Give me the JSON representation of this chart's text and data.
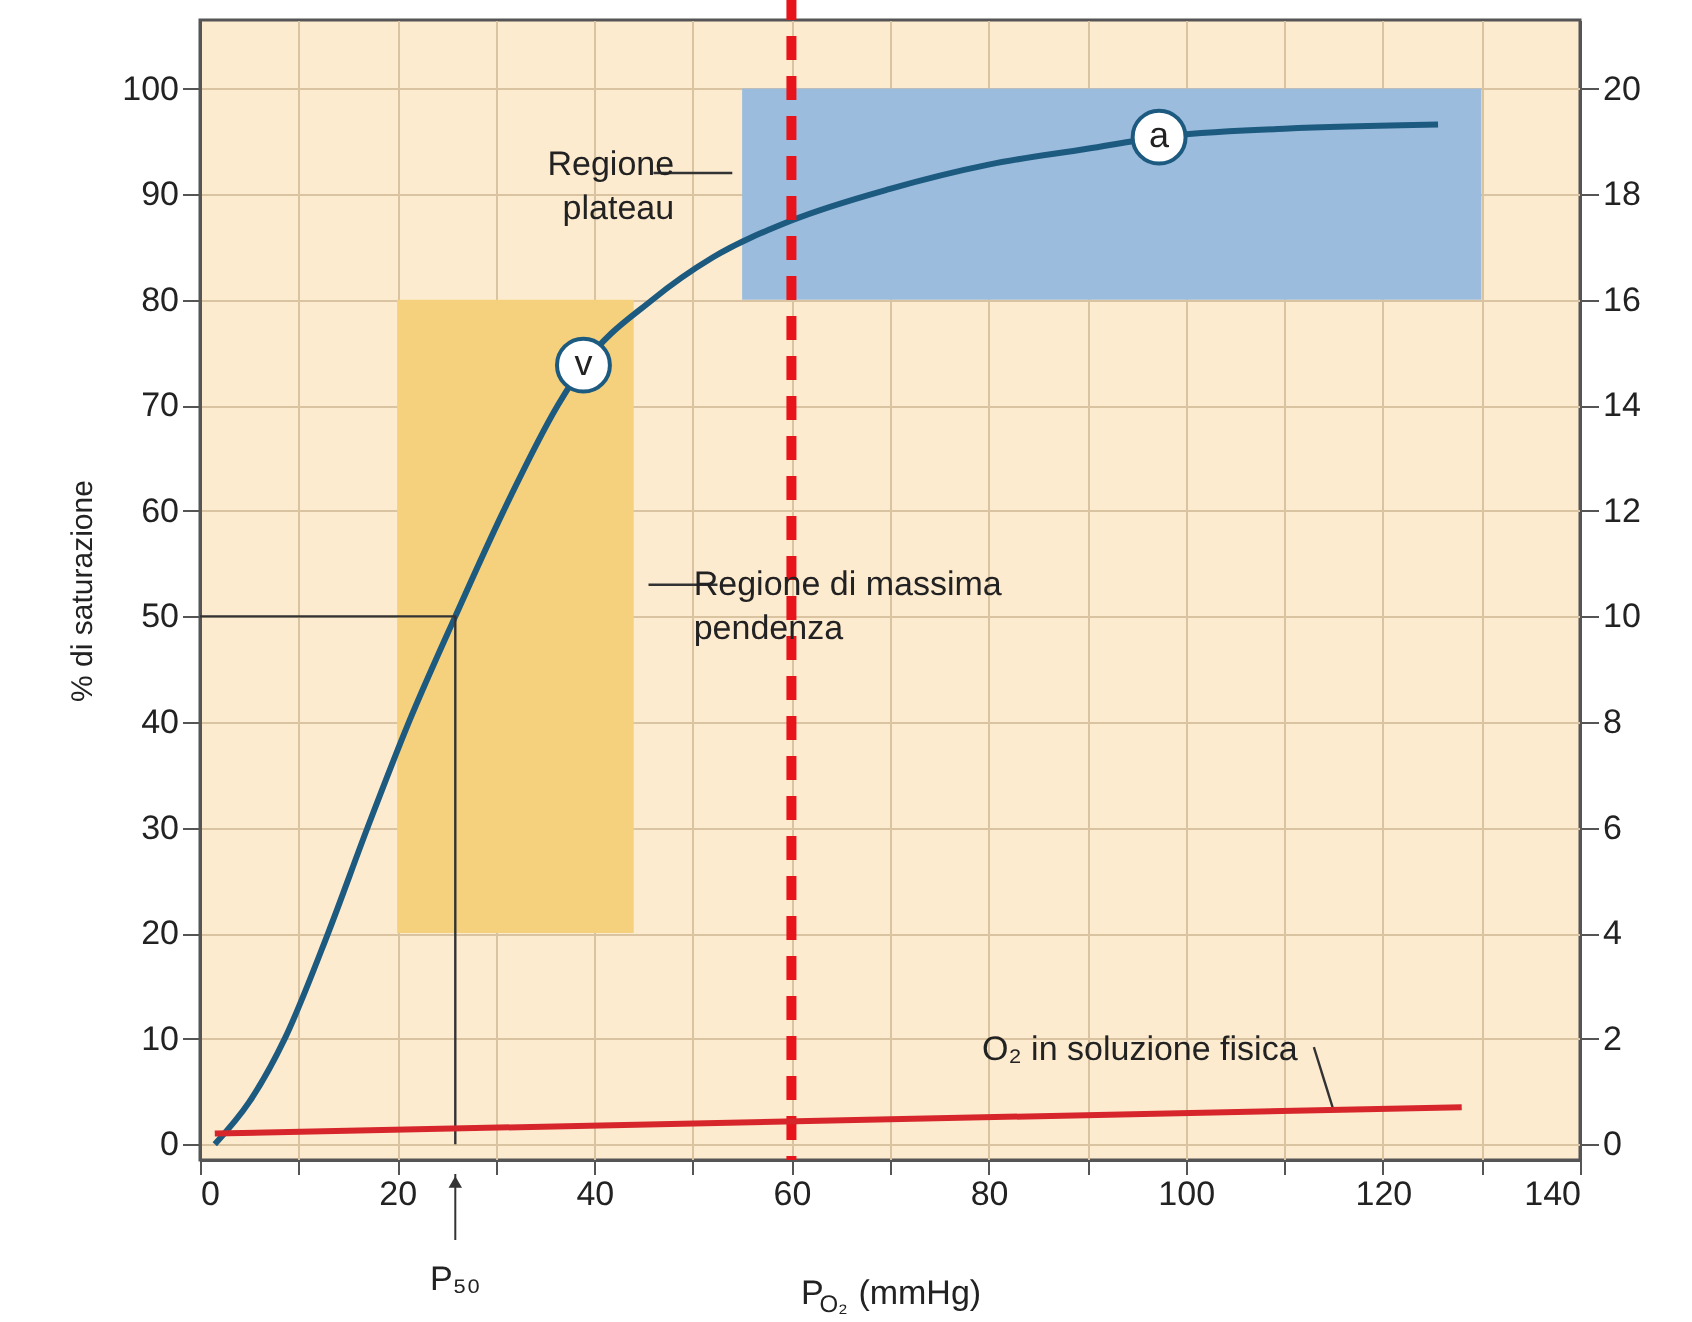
{
  "chart_data": {
    "type": "line",
    "xlabel": "P$_{O₂}$ (mmHg)",
    "ylabel": "% di saturazione",
    "xlim": [
      0,
      140
    ],
    "xticks": [
      0,
      {
        "value": 10,
        "label": null
      },
      20,
      {
        "value": 30,
        "label": null
      },
      40,
      {
        "value": 50,
        "label": null
      },
      60,
      {
        "value": 70,
        "label": null
      },
      80,
      {
        "value": 90,
        "label": null
      },
      100,
      {
        "value": 110,
        "label": null
      },
      120,
      {
        "value": 130,
        "label": null
      },
      140
    ],
    "ylim": [
      -1.5,
      106.5
    ],
    "yticks": [
      0,
      10,
      20,
      30,
      40,
      50,
      60,
      70,
      80,
      90,
      100
    ],
    "y2lim": [
      -0.3,
      21.3
    ],
    "y2ticks": [
      0,
      2,
      4,
      6,
      8,
      10,
      12,
      14,
      16,
      18,
      20
    ],
    "grid": true,
    "marker": "none",
    "line_style": "solid",
    "series": [
      {
        "type": "area",
        "color": "#f5d17e",
        "x": [
          20,
          44
        ],
        "values": [
          null,
          null
        ],
        "lower": [
          20,
          20
        ],
        "upper": [
          80,
          80
        ]
      },
      {
        "type": "area",
        "color": "#9bbcdc",
        "x": [
          55,
          130
        ],
        "values": [
          null,
          null
        ],
        "lower": [
          80,
          80
        ],
        "upper": [
          100,
          100
        ]
      },
      {
        "color": "#1d5a80",
        "x": [
          1.5,
          5,
          8.6,
          13,
          17,
          21.2,
          25.9,
          30.8,
          36.3,
          38.9,
          45.9,
          52,
          60,
          70,
          80,
          90,
          97.3,
          110,
          125.6
        ],
        "values": [
          0,
          4,
          10,
          20,
          30,
          40,
          50,
          60,
          70,
          73.8,
          80,
          84,
          87.5,
          90.5,
          92.8,
          94.3,
          95.4,
          96.2,
          96.6
        ]
      },
      {
        "color": "#d7262b",
        "axis": "y2",
        "x": [
          1.5,
          128
        ],
        "values": [
          0.2,
          0.7
        ]
      },
      {
        "type": "line",
        "color": "#333333",
        "x": [
          0,
          25.9,
          25.9
        ],
        "values": [
          50,
          50,
          0
        ]
      }
    ],
    "ref_lines": [
      {
        "axis": "x",
        "value": 60,
        "color": "#e8141b",
        "line_style": "dashed"
      }
    ],
    "annotations": [
      {
        "text": "Regione plateau",
        "x": 55,
        "y": 92
      },
      {
        "text": "Regione di massima pendenza",
        "x": 44,
        "y": 53
      },
      {
        "text": "v",
        "x": 38.9,
        "y": 73.8
      },
      {
        "text": "a",
        "x": 97.3,
        "y": 95.4
      },
      {
        "text": "O₂ in soluzione fisica",
        "x": 115,
        "y": 3.2
      },
      "P₅₀"
    ]
  }
}
